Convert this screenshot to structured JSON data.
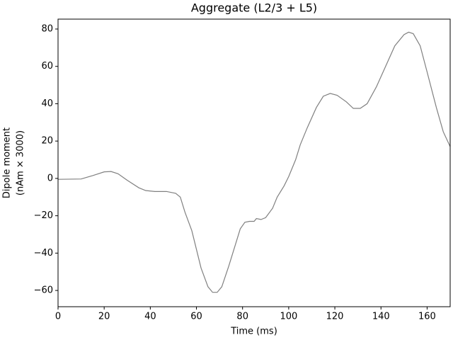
{
  "chart_data": {
    "type": "line",
    "title": "Aggregate (L2/3 + L5)",
    "xlabel": "Time (ms)",
    "ylabel_lines": [
      "Dipole moment",
      "(nAm × 3000)"
    ],
    "x": [
      0,
      10,
      15,
      20,
      23,
      26,
      30,
      35,
      38,
      42,
      47,
      51,
      53,
      55,
      58,
      62,
      65,
      67,
      69,
      71,
      74,
      77,
      79,
      81,
      83,
      85,
      86,
      88,
      90,
      93,
      95,
      98,
      100,
      103,
      105,
      108,
      112,
      115,
      118,
      121,
      125,
      128,
      131,
      134,
      138,
      142,
      146,
      150,
      152,
      154,
      157,
      160,
      164,
      167,
      170
    ],
    "series": [
      {
        "name": "Aggregate",
        "color": "#808080",
        "values": [
          -0.5,
          -0.3,
          1.5,
          3.5,
          3.7,
          2.5,
          -1,
          -5,
          -6.5,
          -7,
          -7,
          -8,
          -10,
          -18,
          -28,
          -48,
          -58,
          -61,
          -61,
          -58,
          -47,
          -35,
          -27,
          -23.5,
          -23,
          -23,
          -21.5,
          -22,
          -21,
          -16,
          -10,
          -4,
          1,
          10,
          18,
          27,
          38,
          44,
          45.5,
          44.5,
          41,
          37.5,
          37.5,
          40,
          49,
          60,
          71,
          77,
          78.3,
          77.5,
          71,
          57,
          38,
          25,
          17
        ]
      }
    ],
    "xlim": [
      0,
      170
    ],
    "xticks": [
      0,
      20,
      40,
      60,
      80,
      100,
      120,
      140,
      160
    ],
    "ylim": [
      -68.7,
      85.3
    ],
    "yticks": [
      {
        "value": -60,
        "label": "−60"
      },
      {
        "value": -40,
        "label": "−40"
      },
      {
        "value": -20,
        "label": "−20"
      },
      0,
      20,
      40,
      60,
      80
    ]
  }
}
